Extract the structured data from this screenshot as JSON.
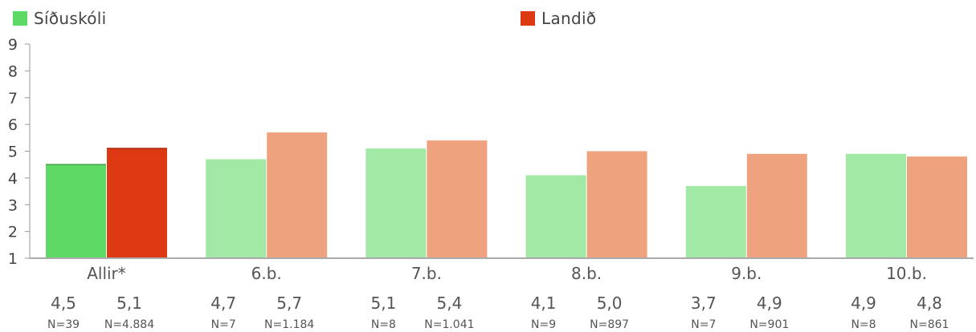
{
  "chart_data": {
    "type": "bar",
    "categories": [
      "Allir*",
      "6.b.",
      "7.b.",
      "8.b.",
      "9.b.",
      "10.b."
    ],
    "series": [
      {
        "name": "Síðuskóli",
        "values": [
          4.5,
          4.7,
          5.1,
          4.1,
          3.7,
          4.9
        ],
        "labels": [
          "4,5",
          "4,7",
          "5,1",
          "4,1",
          "3,7",
          "4,9"
        ],
        "n": [
          "N=39",
          "N=7",
          "N=8",
          "N=9",
          "N=7",
          "N=8"
        ],
        "color": "#5fd966",
        "color_light": "#a3e9a6"
      },
      {
        "name": "Landið",
        "values": [
          5.1,
          5.7,
          5.4,
          5.0,
          4.9,
          4.8
        ],
        "labels": [
          "5,1",
          "5,7",
          "5,4",
          "5,0",
          "4,9",
          "4,8"
        ],
        "n": [
          "N=4.884",
          "N=1.184",
          "N=1.041",
          "N=897",
          "N=901",
          "N=861"
        ],
        "color": "#dd3a14",
        "color_light": "#eea27e"
      }
    ],
    "ylim": [
      1,
      9
    ],
    "yticks": [
      1,
      2,
      3,
      4,
      5,
      6,
      7,
      8,
      9
    ],
    "highlighted_category": "Allir*",
    "legend_position": "top",
    "grid": false
  }
}
